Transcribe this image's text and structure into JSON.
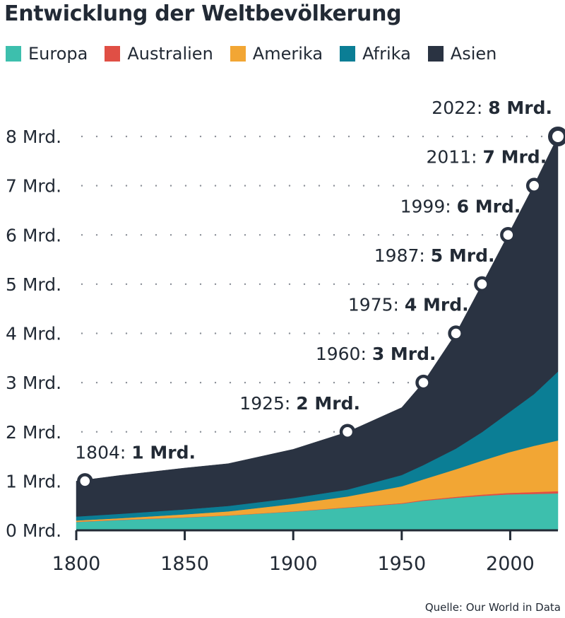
{
  "title": "Entwicklung der Weltbevölkerung",
  "source": "Quelle: Our World in Data",
  "chart_data": {
    "type": "area",
    "stacked": true,
    "x": [
      1800,
      1820,
      1850,
      1870,
      1900,
      1925,
      1950,
      1960,
      1975,
      1987,
      1999,
      2011,
      2022
    ],
    "series": [
      {
        "name": "Europa",
        "color": "#3dbfad",
        "values": [
          0.17,
          0.21,
          0.26,
          0.3,
          0.38,
          0.46,
          0.54,
          0.6,
          0.66,
          0.7,
          0.73,
          0.74,
          0.75
        ]
      },
      {
        "name": "Australien",
        "color": "#e04f45",
        "values": [
          0.005,
          0.005,
          0.005,
          0.005,
          0.006,
          0.008,
          0.013,
          0.016,
          0.021,
          0.025,
          0.03,
          0.037,
          0.045
        ]
      },
      {
        "name": "Amerika",
        "color": "#f2a634",
        "values": [
          0.025,
          0.03,
          0.06,
          0.08,
          0.15,
          0.22,
          0.34,
          0.42,
          0.56,
          0.69,
          0.82,
          0.94,
          1.03
        ]
      },
      {
        "name": "Afrika",
        "color": "#0b7e95",
        "values": [
          0.08,
          0.09,
          0.1,
          0.11,
          0.12,
          0.14,
          0.23,
          0.29,
          0.42,
          0.58,
          0.8,
          1.05,
          1.4
        ]
      },
      {
        "name": "Asien",
        "color": "#2a3342",
        "values": [
          0.72,
          0.78,
          0.84,
          0.86,
          0.99,
          1.17,
          1.37,
          1.68,
          2.34,
          3.0,
          3.62,
          4.25,
          4.78
        ]
      }
    ],
    "milestones": [
      {
        "year": "1804",
        "value": "1 Mrd.",
        "x": 1804,
        "y": 1
      },
      {
        "year": "1925",
        "value": "2 Mrd.",
        "x": 1925,
        "y": 2
      },
      {
        "year": "1960",
        "value": "3 Mrd.",
        "x": 1960,
        "y": 3
      },
      {
        "year": "1975",
        "value": "4 Mrd.",
        "x": 1975,
        "y": 4
      },
      {
        "year": "1987",
        "value": "5 Mrd.",
        "x": 1987,
        "y": 5
      },
      {
        "year": "1999",
        "value": "6 Mrd.",
        "x": 1999,
        "y": 6
      },
      {
        "year": "2011",
        "value": "7 Mrd.",
        "x": 2011,
        "y": 7
      },
      {
        "year": "2022",
        "value": "8 Mrd.",
        "x": 2022,
        "y": 8
      }
    ],
    "y_ticks": [
      {
        "value": 0,
        "label": "0 Mrd."
      },
      {
        "value": 1,
        "label": "1 Mrd."
      },
      {
        "value": 2,
        "label": "2 Mrd."
      },
      {
        "value": 3,
        "label": "3 Mrd."
      },
      {
        "value": 4,
        "label": "4 Mrd."
      },
      {
        "value": 5,
        "label": "5 Mrd."
      },
      {
        "value": 6,
        "label": "6 Mrd."
      },
      {
        "value": 7,
        "label": "7 Mrd."
      },
      {
        "value": 8,
        "label": "8 Mrd."
      }
    ],
    "x_ticks": [
      {
        "value": 1800,
        "label": "1800"
      },
      {
        "value": 1850,
        "label": "1850"
      },
      {
        "value": 1900,
        "label": "1900"
      },
      {
        "value": 1950,
        "label": "1950"
      },
      {
        "value": 2000,
        "label": "2000"
      }
    ],
    "xlim": [
      1800,
      2022
    ],
    "ylim": [
      0,
      8
    ],
    "grid": "dotted horizontal",
    "legend_position": "top"
  }
}
